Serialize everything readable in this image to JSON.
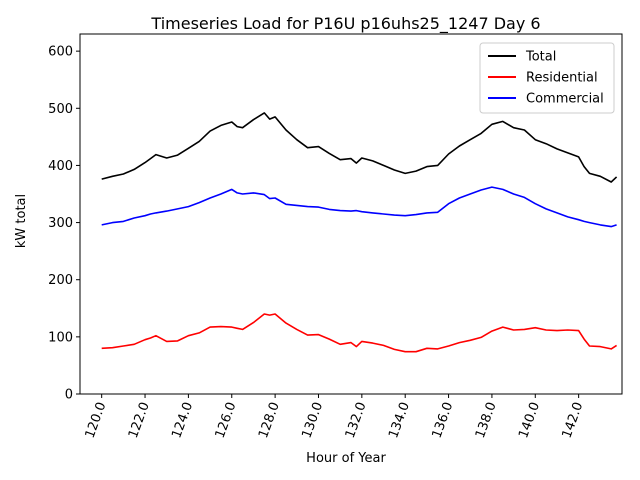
{
  "chart_data": {
    "type": "line",
    "title": "Timeseries Load for P16U p16uhs25_1247  Day 6",
    "xlabel": "Hour of Year",
    "ylabel": "kW total",
    "xlim": [
      119.0,
      144.0
    ],
    "ylim": [
      0,
      630
    ],
    "x_ticks": [
      120,
      122,
      124,
      126,
      128,
      130,
      132,
      134,
      136,
      138,
      140,
      142
    ],
    "x_tick_labels": [
      "120.0",
      "122.0",
      "124.0",
      "126.0",
      "128.0",
      "130.0",
      "132.0",
      "134.0",
      "136.0",
      "138.0",
      "140.0",
      "142.0"
    ],
    "y_ticks": [
      0,
      100,
      200,
      300,
      400,
      500,
      600
    ],
    "y_tick_labels": [
      "0",
      "100",
      "200",
      "300",
      "400",
      "500",
      "600"
    ],
    "grid": false,
    "legend_position": "top-right",
    "x": [
      120.0,
      120.5,
      121.0,
      121.5,
      122.0,
      122.25,
      122.5,
      123.0,
      123.5,
      124.0,
      124.5,
      125.0,
      125.5,
      126.0,
      126.25,
      126.5,
      127.0,
      127.5,
      127.75,
      128.0,
      128.5,
      129.0,
      129.5,
      130.0,
      130.5,
      131.0,
      131.5,
      131.75,
      132.0,
      132.5,
      133.0,
      133.5,
      134.0,
      134.5,
      135.0,
      135.5,
      136.0,
      136.5,
      137.0,
      137.5,
      138.0,
      138.5,
      139.0,
      139.5,
      140.0,
      140.5,
      141.0,
      141.5,
      142.0,
      142.25,
      142.5,
      143.0,
      143.5,
      143.75
    ],
    "series": [
      {
        "name": "Total",
        "color": "#000000",
        "values": [
          376,
          381,
          385,
          393,
          405,
          412,
          419,
          413,
          418,
          430,
          442,
          460,
          470,
          476,
          468,
          466,
          480,
          492,
          481,
          485,
          462,
          445,
          431,
          433,
          421,
          410,
          412,
          404,
          413,
          408,
          400,
          392,
          386,
          390,
          398,
          400,
          420,
          434,
          445,
          456,
          472,
          477,
          466,
          462,
          445,
          438,
          429,
          422,
          415,
          398,
          386,
          381,
          371,
          380
        ]
      },
      {
        "name": "Residential",
        "color": "#ff0000",
        "values": [
          80,
          81,
          84,
          87,
          95,
          98,
          102,
          92,
          93,
          102,
          107,
          117,
          118,
          117,
          115,
          113,
          125,
          140,
          138,
          140,
          124,
          113,
          103,
          104,
          96,
          87,
          90,
          83,
          92,
          89,
          85,
          78,
          74,
          74,
          80,
          79,
          84,
          90,
          94,
          99,
          110,
          117,
          112,
          113,
          116,
          112,
          111,
          112,
          111,
          96,
          84,
          83,
          79,
          85
        ]
      },
      {
        "name": "Commercial",
        "color": "#0000ff",
        "values": [
          296,
          300,
          302,
          308,
          312,
          315,
          317,
          320,
          324,
          328,
          335,
          343,
          350,
          358,
          352,
          350,
          352,
          349,
          342,
          343,
          332,
          330,
          328,
          327,
          323,
          321,
          320,
          321,
          319,
          317,
          315,
          313,
          312,
          314,
          317,
          318,
          333,
          343,
          350,
          357,
          362,
          358,
          350,
          344,
          333,
          324,
          317,
          310,
          305,
          302,
          300,
          296,
          293,
          296
        ]
      }
    ]
  }
}
